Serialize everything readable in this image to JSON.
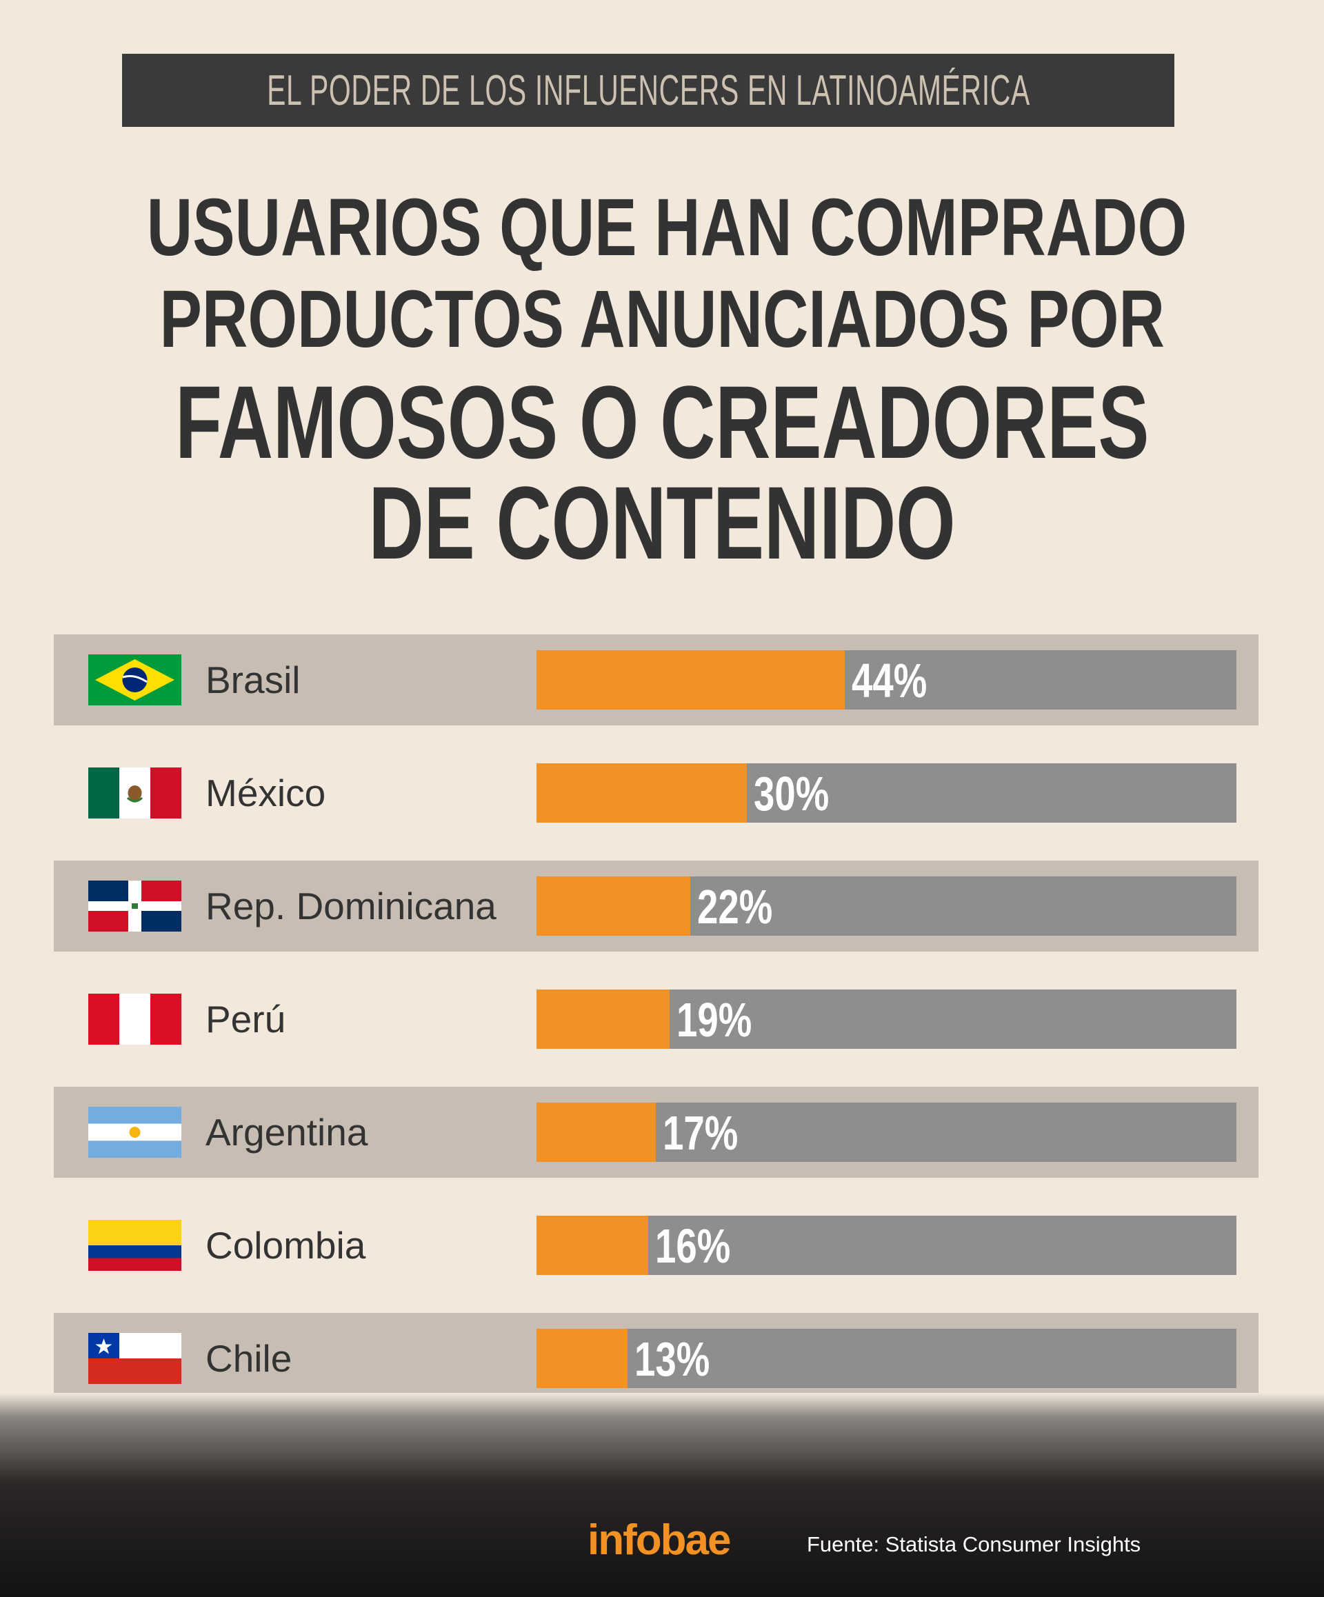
{
  "header": {
    "kicker": "EL PODER DE LOS INFLUENCERS EN LATINOAMÉRICA",
    "title_lines": [
      "USUARIOS QUE HAN COMPRADO",
      "PRODUCTOS ANUNCIADOS POR",
      "FAMOSOS O CREADORES",
      "DE CONTENIDO"
    ]
  },
  "chart_data": {
    "type": "bar",
    "orientation": "horizontal",
    "categories": [
      "Brasil",
      "México",
      "Rep. Dominicana",
      "Perú",
      "Argentina",
      "Colombia",
      "Chile"
    ],
    "values": [
      44,
      30,
      22,
      19,
      17,
      16,
      13
    ],
    "value_labels": [
      "44%",
      "30%",
      "22%",
      "19%",
      "17%",
      "16%",
      "13%"
    ],
    "unit": "%",
    "xlim": [
      0,
      100
    ],
    "flags": [
      "brazil-flag-icon",
      "mexico-flag-icon",
      "dominican-republic-flag-icon",
      "peru-flag-icon",
      "argentina-flag-icon",
      "colombia-flag-icon",
      "chile-flag-icon"
    ],
    "colors": {
      "fill": "#f39125",
      "track": "#8e8e8e",
      "row_shade": "#c7bdb2"
    },
    "grid": false,
    "legend": "none"
  },
  "footer": {
    "logo": "infobae",
    "source": "Fuente: Statista Consumer Insights"
  }
}
